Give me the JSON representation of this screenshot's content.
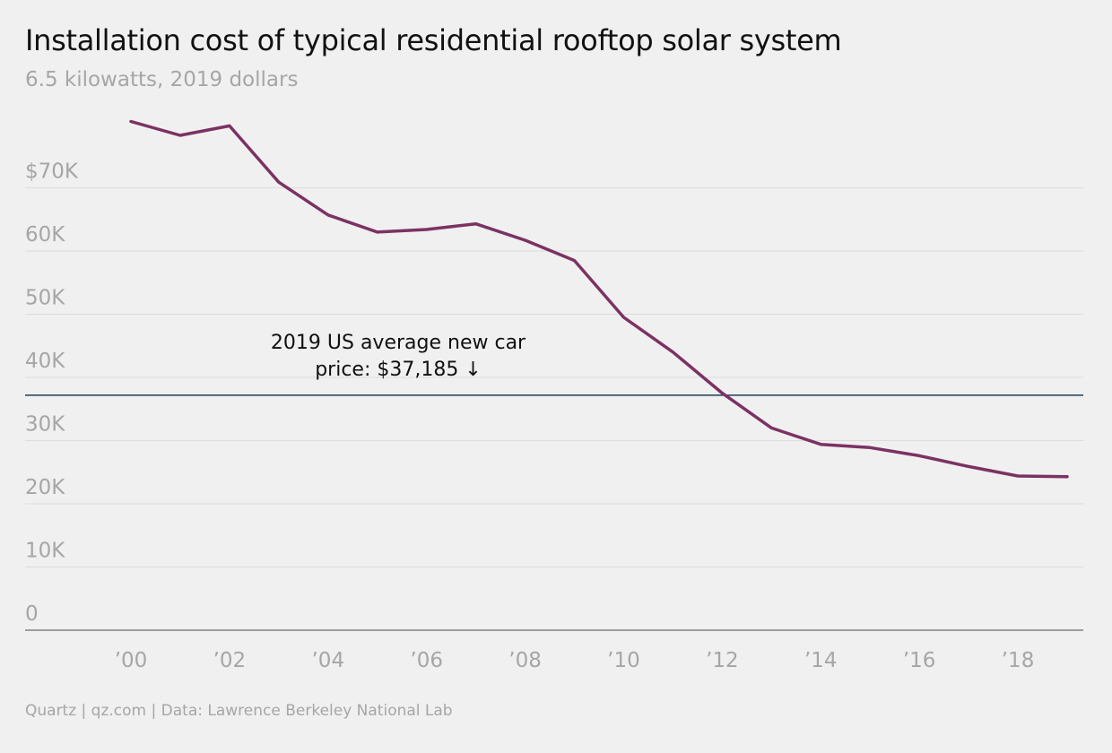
{
  "header": {
    "title": "Installation cost of typical residential rooftop solar system",
    "subtitle": "6.5 kilowatts, 2019 dollars"
  },
  "footer": {
    "source": "Quartz | qz.com | Data: Lawrence Berkeley National Lab"
  },
  "colors": {
    "line": "#7b3263",
    "reference": "#1d3d55",
    "grid": "#dcdcdc",
    "tick_text": "#a6a6a6",
    "background": "#f0f0f0"
  },
  "chart_data": {
    "type": "line",
    "title": "Installation cost of typical residential rooftop solar system",
    "subtitle": "6.5 kilowatts, 2019 dollars",
    "x": [
      2000,
      2001,
      2002,
      2003,
      2004,
      2005,
      2006,
      2007,
      2008,
      2009,
      2010,
      2011,
      2012,
      2013,
      2014,
      2015,
      2016,
      2017,
      2018,
      2019
    ],
    "series": [
      {
        "values": [
          80500,
          78300,
          79800,
          70900,
          65700,
          63000,
          63400,
          64300,
          61700,
          58500,
          49500,
          44000,
          37500,
          32000,
          29400,
          28900,
          27600,
          25900,
          24400,
          24300
        ]
      }
    ],
    "ylim": [
      0,
      80000
    ],
    "yticks": [
      {
        "value": 0,
        "label": "0"
      },
      {
        "value": 10000,
        "label": "10K"
      },
      {
        "value": 20000,
        "label": "20K"
      },
      {
        "value": 30000,
        "label": "30K"
      },
      {
        "value": 40000,
        "label": "40K"
      },
      {
        "value": 50000,
        "label": "50K"
      },
      {
        "value": 60000,
        "label": "60K"
      },
      {
        "value": 70000,
        "label": "$70K"
      }
    ],
    "xticks": [
      {
        "value": 2000,
        "label": "’00"
      },
      {
        "value": 2002,
        "label": "’02"
      },
      {
        "value": 2004,
        "label": "’04"
      },
      {
        "value": 2006,
        "label": "’06"
      },
      {
        "value": 2008,
        "label": "’08"
      },
      {
        "value": 2010,
        "label": "’10"
      },
      {
        "value": 2012,
        "label": "’12"
      },
      {
        "value": 2014,
        "label": "’14"
      },
      {
        "value": 2016,
        "label": "’16"
      },
      {
        "value": 2018,
        "label": "’18"
      }
    ],
    "reference_line": {
      "value": 37185,
      "label_lines": [
        "2019 US average new car",
        "price: $37,185 ↓"
      ]
    },
    "grid": true
  }
}
